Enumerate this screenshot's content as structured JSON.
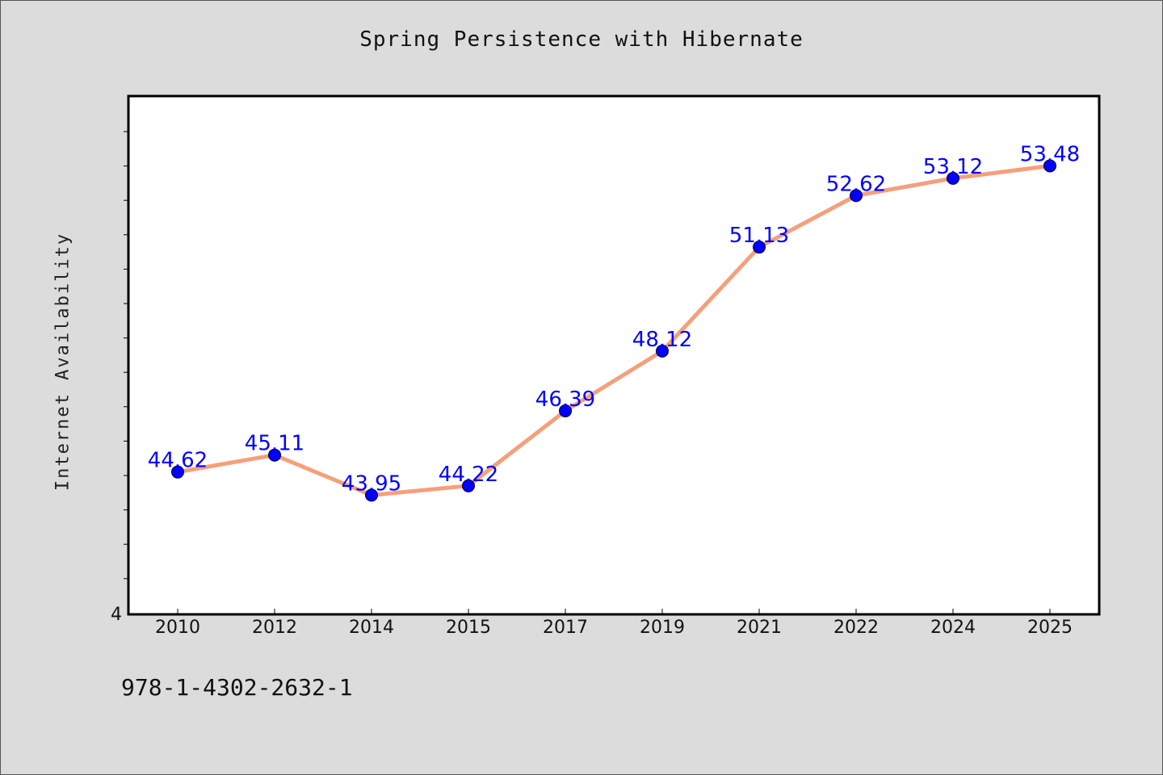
{
  "chart_data": {
    "type": "line",
    "title": "Spring Persistence with Hibernate",
    "xlabel": "",
    "ylabel": "Internet Availability",
    "categories": [
      "2010",
      "2012",
      "2014",
      "2015",
      "2017",
      "2019",
      "2021",
      "2022",
      "2024",
      "2025"
    ],
    "series": [
      {
        "values": [
          44.62,
          45.11,
          43.95,
          44.22,
          46.39,
          48.12,
          51.13,
          52.62,
          53.12,
          53.48
        ],
        "data_labels": [
          "44.62",
          "45.11",
          "43.95",
          "44.22",
          "46.39",
          "48.12",
          "51.13",
          "52.62",
          "53.12",
          "53.48"
        ]
      }
    ],
    "ylim": [
      40.5,
      55.5
    ],
    "ytick_labels": [
      "4"
    ],
    "grid": false,
    "line_color": "#f4a07c",
    "marker_color": "#0000ff",
    "label_color": "#0000ff"
  },
  "footer": {
    "isbn": "978-1-4302-2632-1"
  }
}
